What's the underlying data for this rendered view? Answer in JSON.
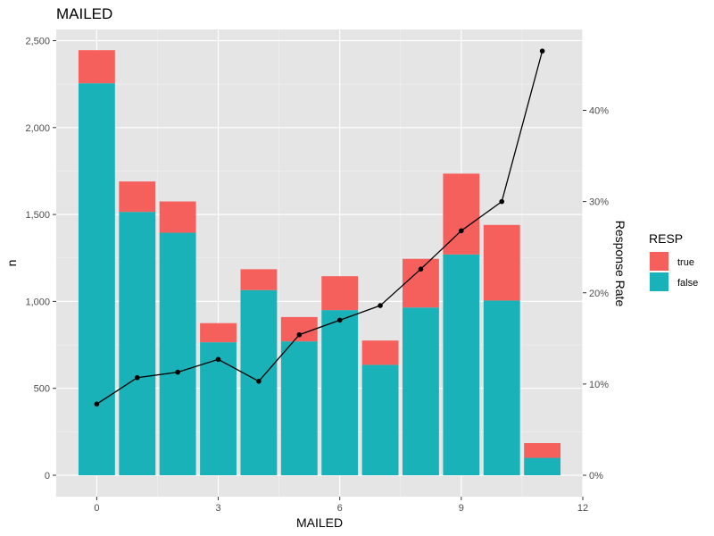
{
  "chart_data": {
    "type": "bar",
    "title": "MAILED",
    "xlabel": "MAILED",
    "ylabel": "n",
    "y2label": "Response Rate",
    "x": [
      0,
      1,
      2,
      3,
      4,
      5,
      6,
      7,
      8,
      9,
      10,
      11
    ],
    "xlim": [
      -1,
      12
    ],
    "x_ticks": [
      0,
      3,
      6,
      9,
      12
    ],
    "x_tick_labels": [
      "0",
      "3",
      "6",
      "9",
      "12"
    ],
    "ylim": [
      0,
      2500
    ],
    "y_ticks": [
      0,
      500,
      1000,
      1500,
      2000,
      2500
    ],
    "y_tick_labels": [
      "0",
      "500",
      "1,000",
      "1,500",
      "2,000",
      "2,500"
    ],
    "y2lim": [
      0,
      0.45
    ],
    "y2_ticks": [
      0,
      0.1,
      0.2,
      0.3,
      0.4
    ],
    "y2_tick_labels": [
      "0%",
      "10%",
      "20%",
      "30%",
      "40%"
    ],
    "stacked": true,
    "series": [
      {
        "name": "false",
        "color": "#19B2B8",
        "values": [
          2255,
          1515,
          1395,
          765,
          1065,
          770,
          950,
          635,
          965,
          1270,
          1005,
          100
        ]
      },
      {
        "name": "true",
        "color": "#F5605C",
        "values": [
          190,
          175,
          180,
          110,
          120,
          140,
          195,
          140,
          280,
          465,
          435,
          85
        ]
      }
    ],
    "line": {
      "name": "Response Rate",
      "color": "#000000",
      "values": [
        0.078,
        0.107,
        0.113,
        0.127,
        0.103,
        0.154,
        0.17,
        0.186,
        0.226,
        0.268,
        0.3,
        0.465
      ]
    },
    "legend": {
      "title": "RESP",
      "position": "right",
      "entries": [
        {
          "label": "true",
          "color": "#F5605C"
        },
        {
          "label": "false",
          "color": "#19B2B8"
        }
      ]
    },
    "grid": true,
    "background": "#E5E5E5"
  }
}
